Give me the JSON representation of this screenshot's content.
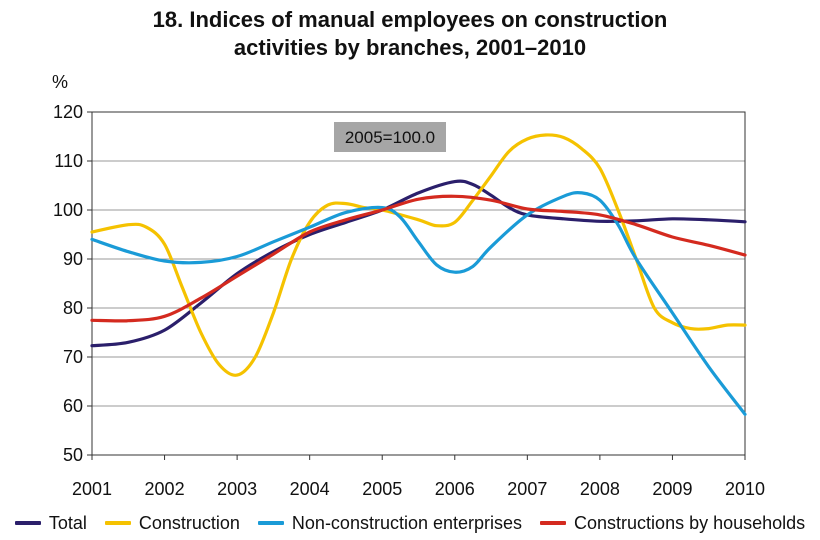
{
  "chart_data": {
    "type": "line",
    "title_line1": "18. Indices of manual employees on construction",
    "title_line2": "activities by branches, 2001–2010",
    "ylabel": "%",
    "annotation": "2005=100.0",
    "ylim": [
      50,
      120
    ],
    "yticks": [
      50,
      60,
      70,
      80,
      90,
      100,
      110,
      120
    ],
    "xlim": [
      2001,
      2010
    ],
    "xticks": [
      "2001",
      "2002",
      "2003",
      "2004",
      "2005",
      "2006",
      "2007",
      "2008",
      "2009",
      "2010"
    ],
    "grid": "horizontal",
    "legend_position": "bottom",
    "series": [
      {
        "name": "Total",
        "color": "#2b1f6b",
        "points": [
          [
            2001,
            72.3
          ],
          [
            2001.5,
            73
          ],
          [
            2002,
            75.5
          ],
          [
            2002.5,
            81
          ],
          [
            2003,
            87
          ],
          [
            2003.5,
            91.5
          ],
          [
            2004,
            95
          ],
          [
            2004.5,
            97.5
          ],
          [
            2005,
            100
          ],
          [
            2005.5,
            103.5
          ],
          [
            2006,
            105.8
          ],
          [
            2006.25,
            105.2
          ],
          [
            2006.5,
            103
          ],
          [
            2006.75,
            100.5
          ],
          [
            2007,
            99
          ],
          [
            2007.5,
            98.2
          ],
          [
            2008,
            97.7
          ],
          [
            2008.5,
            97.8
          ],
          [
            2009,
            98.2
          ],
          [
            2009.5,
            98
          ],
          [
            2010,
            97.6
          ]
        ]
      },
      {
        "name": "Construction",
        "color": "#f5c200",
        "points": [
          [
            2001,
            95.5
          ],
          [
            2001.5,
            97
          ],
          [
            2001.75,
            96.5
          ],
          [
            2002,
            93
          ],
          [
            2002.25,
            84
          ],
          [
            2002.5,
            75
          ],
          [
            2002.75,
            68.5
          ],
          [
            2003,
            66.3
          ],
          [
            2003.25,
            70
          ],
          [
            2003.5,
            79
          ],
          [
            2003.75,
            90
          ],
          [
            2004,
            97.5
          ],
          [
            2004.25,
            101
          ],
          [
            2004.5,
            101.3
          ],
          [
            2004.75,
            100.5
          ],
          [
            2005,
            100
          ],
          [
            2005.5,
            98
          ],
          [
            2005.75,
            96.8
          ],
          [
            2006,
            97.5
          ],
          [
            2006.25,
            102
          ],
          [
            2006.5,
            107
          ],
          [
            2006.75,
            112
          ],
          [
            2007,
            114.5
          ],
          [
            2007.25,
            115.3
          ],
          [
            2007.5,
            114.8
          ],
          [
            2007.75,
            112.5
          ],
          [
            2008,
            108.5
          ],
          [
            2008.25,
            100
          ],
          [
            2008.5,
            90
          ],
          [
            2008.75,
            80
          ],
          [
            2009,
            77
          ],
          [
            2009.25,
            75.8
          ],
          [
            2009.5,
            75.8
          ],
          [
            2009.75,
            76.5
          ],
          [
            2010,
            76.5
          ]
        ]
      },
      {
        "name": "Non-construction enterprises",
        "color": "#1a9bd7",
        "points": [
          [
            2001,
            94
          ],
          [
            2001.5,
            91.5
          ],
          [
            2002,
            89.6
          ],
          [
            2002.5,
            89.3
          ],
          [
            2003,
            90.5
          ],
          [
            2003.5,
            93.5
          ],
          [
            2004,
            96.5
          ],
          [
            2004.5,
            99.5
          ],
          [
            2005,
            100.5
          ],
          [
            2005.25,
            98.5
          ],
          [
            2005.5,
            93.5
          ],
          [
            2005.75,
            88.8
          ],
          [
            2006,
            87.3
          ],
          [
            2006.25,
            88.5
          ],
          [
            2006.5,
            92.5
          ],
          [
            2007,
            99
          ],
          [
            2007.5,
            102.8
          ],
          [
            2007.75,
            103.5
          ],
          [
            2008,
            102
          ],
          [
            2008.25,
            97
          ],
          [
            2008.5,
            90
          ],
          [
            2009,
            79
          ],
          [
            2009.5,
            68
          ],
          [
            2010,
            58.3
          ]
        ]
      },
      {
        "name": "Constructions by households",
        "color": "#d42a1f",
        "points": [
          [
            2001,
            77.5
          ],
          [
            2001.5,
            77.4
          ],
          [
            2002,
            78.3
          ],
          [
            2002.5,
            82
          ],
          [
            2003,
            86.5
          ],
          [
            2003.5,
            91
          ],
          [
            2004,
            95.5
          ],
          [
            2004.5,
            98
          ],
          [
            2005,
            100
          ],
          [
            2005.5,
            102.2
          ],
          [
            2006,
            102.8
          ],
          [
            2006.5,
            102
          ],
          [
            2007,
            100.2
          ],
          [
            2007.5,
            99.7
          ],
          [
            2008,
            99
          ],
          [
            2008.5,
            97
          ],
          [
            2009,
            94.5
          ],
          [
            2009.5,
            92.8
          ],
          [
            2010,
            90.8
          ]
        ]
      }
    ]
  }
}
